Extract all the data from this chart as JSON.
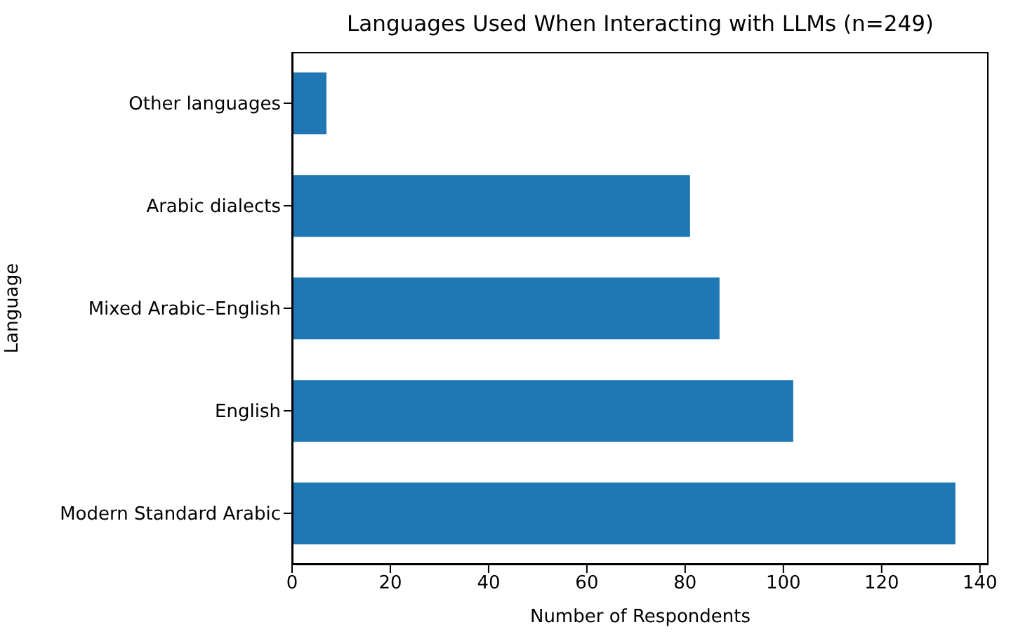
{
  "chart_data": {
    "type": "bar",
    "orientation": "horizontal",
    "title": "Languages Used When Interacting with LLMs (n=249)",
    "xlabel": "Number of Respondents",
    "ylabel": "Language",
    "categories": [
      "Other languages",
      "Arabic dialects",
      "Mixed Arabic–English",
      "English",
      "Modern Standard Arabic"
    ],
    "values": [
      7,
      81,
      87,
      102,
      135
    ],
    "color": "#1f77b4",
    "xlim": [
      0,
      141.75
    ],
    "xticks": [
      0,
      20,
      40,
      60,
      80,
      100,
      120,
      140
    ],
    "grid": false
  }
}
